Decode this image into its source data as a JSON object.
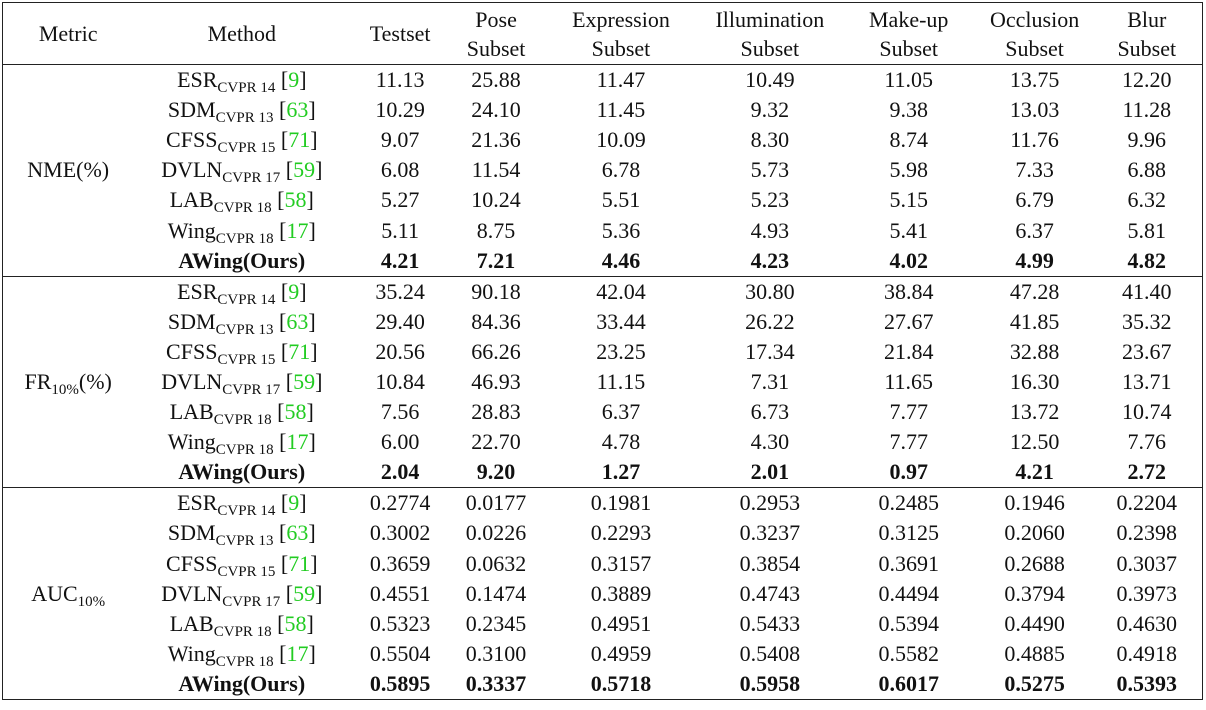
{
  "header": [
    [
      "Metric"
    ],
    [
      "Method"
    ],
    [
      "Testset"
    ],
    [
      "Pose",
      "Subset"
    ],
    [
      "Expression",
      "Subset"
    ],
    [
      "Illumination",
      "Subset"
    ],
    [
      "Make-up",
      "Subset"
    ],
    [
      "Occlusion",
      "Subset"
    ],
    [
      "Blur",
      "Subset"
    ]
  ],
  "groups": [
    {
      "metric": {
        "main": "NME(%)"
      },
      "rows": [
        {
          "method": {
            "name": "ESR",
            "sub": "CVPR 14",
            "open": "[",
            "ref": "9",
            "close": "]"
          },
          "values": [
            "11.13",
            "25.88",
            "11.47",
            "10.49",
            "11.05",
            "13.75",
            "12.20"
          ]
        },
        {
          "method": {
            "name": "SDM",
            "sub": "CVPR 13",
            "open": "[",
            "ref": "63",
            "close": "]"
          },
          "values": [
            "10.29",
            "24.10",
            "11.45",
            "9.32",
            "9.38",
            "13.03",
            "11.28"
          ]
        },
        {
          "method": {
            "name": "CFSS",
            "sub": "CVPR 15",
            "open": "[",
            "ref": "71",
            "close": "]"
          },
          "values": [
            "9.07",
            "21.36",
            "10.09",
            "8.30",
            "8.74",
            "11.76",
            "9.96"
          ]
        },
        {
          "method": {
            "name": "DVLN",
            "sub": "CVPR 17",
            "open": "[",
            "ref": "59",
            "close": "]"
          },
          "values": [
            "6.08",
            "11.54",
            "6.78",
            "5.73",
            "5.98",
            "7.33",
            "6.88"
          ]
        },
        {
          "method": {
            "name": "LAB",
            "sub": "CVPR 18",
            "open": "[",
            "ref": "58",
            "close": "]"
          },
          "values": [
            "5.27",
            "10.24",
            "5.51",
            "5.23",
            "5.15",
            "6.79",
            "6.32"
          ]
        },
        {
          "method": {
            "name": "Wing",
            "sub": "CVPR 18",
            "open": "[",
            "ref": "17",
            "close": "]"
          },
          "values": [
            "5.11",
            "8.75",
            "5.36",
            "4.93",
            "5.41",
            "6.37",
            "5.81"
          ]
        },
        {
          "method": {
            "name": "AWing(Ours)"
          },
          "values": [
            "4.21",
            "7.21",
            "4.46",
            "4.23",
            "4.02",
            "4.99",
            "4.82"
          ]
        }
      ]
    },
    {
      "metric": {
        "main": "FR",
        "sub": "10%",
        "suffix": "(%)"
      },
      "rows": [
        {
          "method": {
            "name": "ESR",
            "sub": "CVPR 14",
            "open": "[",
            "ref": "9",
            "close": "]"
          },
          "values": [
            "35.24",
            "90.18",
            "42.04",
            "30.80",
            "38.84",
            "47.28",
            "41.40"
          ]
        },
        {
          "method": {
            "name": "SDM",
            "sub": "CVPR 13",
            "open": "[",
            "ref": "63",
            "close": "]"
          },
          "values": [
            "29.40",
            "84.36",
            "33.44",
            "26.22",
            "27.67",
            "41.85",
            "35.32"
          ]
        },
        {
          "method": {
            "name": "CFSS",
            "sub": "CVPR 15",
            "open": "[",
            "ref": "71",
            "close": "]"
          },
          "values": [
            "20.56",
            "66.26",
            "23.25",
            "17.34",
            "21.84",
            "32.88",
            "23.67"
          ]
        },
        {
          "method": {
            "name": "DVLN",
            "sub": "CVPR 17",
            "open": "[",
            "ref": "59",
            "close": "]"
          },
          "values": [
            "10.84",
            "46.93",
            "11.15",
            "7.31",
            "11.65",
            "16.30",
            "13.71"
          ]
        },
        {
          "method": {
            "name": "LAB",
            "sub": "CVPR 18",
            "open": "[",
            "ref": "58",
            "close": "]"
          },
          "values": [
            "7.56",
            "28.83",
            "6.37",
            "6.73",
            "7.77",
            "13.72",
            "10.74"
          ]
        },
        {
          "method": {
            "name": "Wing",
            "sub": "CVPR 18",
            "open": "[",
            "ref": "17",
            "close": "]"
          },
          "values": [
            "6.00",
            "22.70",
            "4.78",
            "4.30",
            "7.77",
            "12.50",
            "7.76"
          ]
        },
        {
          "method": {
            "name": "AWing(Ours)"
          },
          "values": [
            "2.04",
            "9.20",
            "1.27",
            "2.01",
            "0.97",
            "4.21",
            "2.72"
          ]
        }
      ]
    },
    {
      "metric": {
        "main": "AUC",
        "sub": "10%"
      },
      "rows": [
        {
          "method": {
            "name": "ESR",
            "sub": "CVPR 14",
            "open": "[",
            "ref": "9",
            "close": "]"
          },
          "values": [
            "0.2774",
            "0.0177",
            "0.1981",
            "0.2953",
            "0.2485",
            "0.1946",
            "0.2204"
          ]
        },
        {
          "method": {
            "name": "SDM",
            "sub": "CVPR 13",
            "open": "[",
            "ref": "63",
            "close": "]"
          },
          "values": [
            "0.3002",
            "0.0226",
            "0.2293",
            "0.3237",
            "0.3125",
            "0.2060",
            "0.2398"
          ]
        },
        {
          "method": {
            "name": "CFSS",
            "sub": "CVPR 15",
            "open": "[",
            "ref": "71",
            "close": "]"
          },
          "values": [
            "0.3659",
            "0.0632",
            "0.3157",
            "0.3854",
            "0.3691",
            "0.2688",
            "0.3037"
          ]
        },
        {
          "method": {
            "name": "DVLN",
            "sub": "CVPR 17",
            "open": "[",
            "ref": "59",
            "close": "]"
          },
          "values": [
            "0.4551",
            "0.1474",
            "0.3889",
            "0.4743",
            "0.4494",
            "0.3794",
            "0.3973"
          ]
        },
        {
          "method": {
            "name": "LAB",
            "sub": "CVPR 18",
            "open": "[",
            "ref": "58",
            "close": "]"
          },
          "values": [
            "0.5323",
            "0.2345",
            "0.4951",
            "0.5433",
            "0.5394",
            "0.4490",
            "0.4630"
          ]
        },
        {
          "method": {
            "name": "Wing",
            "sub": "CVPR 18",
            "open": "[",
            "ref": "17",
            "close": "]"
          },
          "values": [
            "0.5504",
            "0.3100",
            "0.4959",
            "0.5408",
            "0.5582",
            "0.4885",
            "0.4918"
          ]
        },
        {
          "method": {
            "name": "AWing(Ours)"
          },
          "values": [
            "0.5895",
            "0.3337",
            "0.5718",
            "0.5958",
            "0.6017",
            "0.5275",
            "0.5393"
          ]
        }
      ]
    }
  ]
}
